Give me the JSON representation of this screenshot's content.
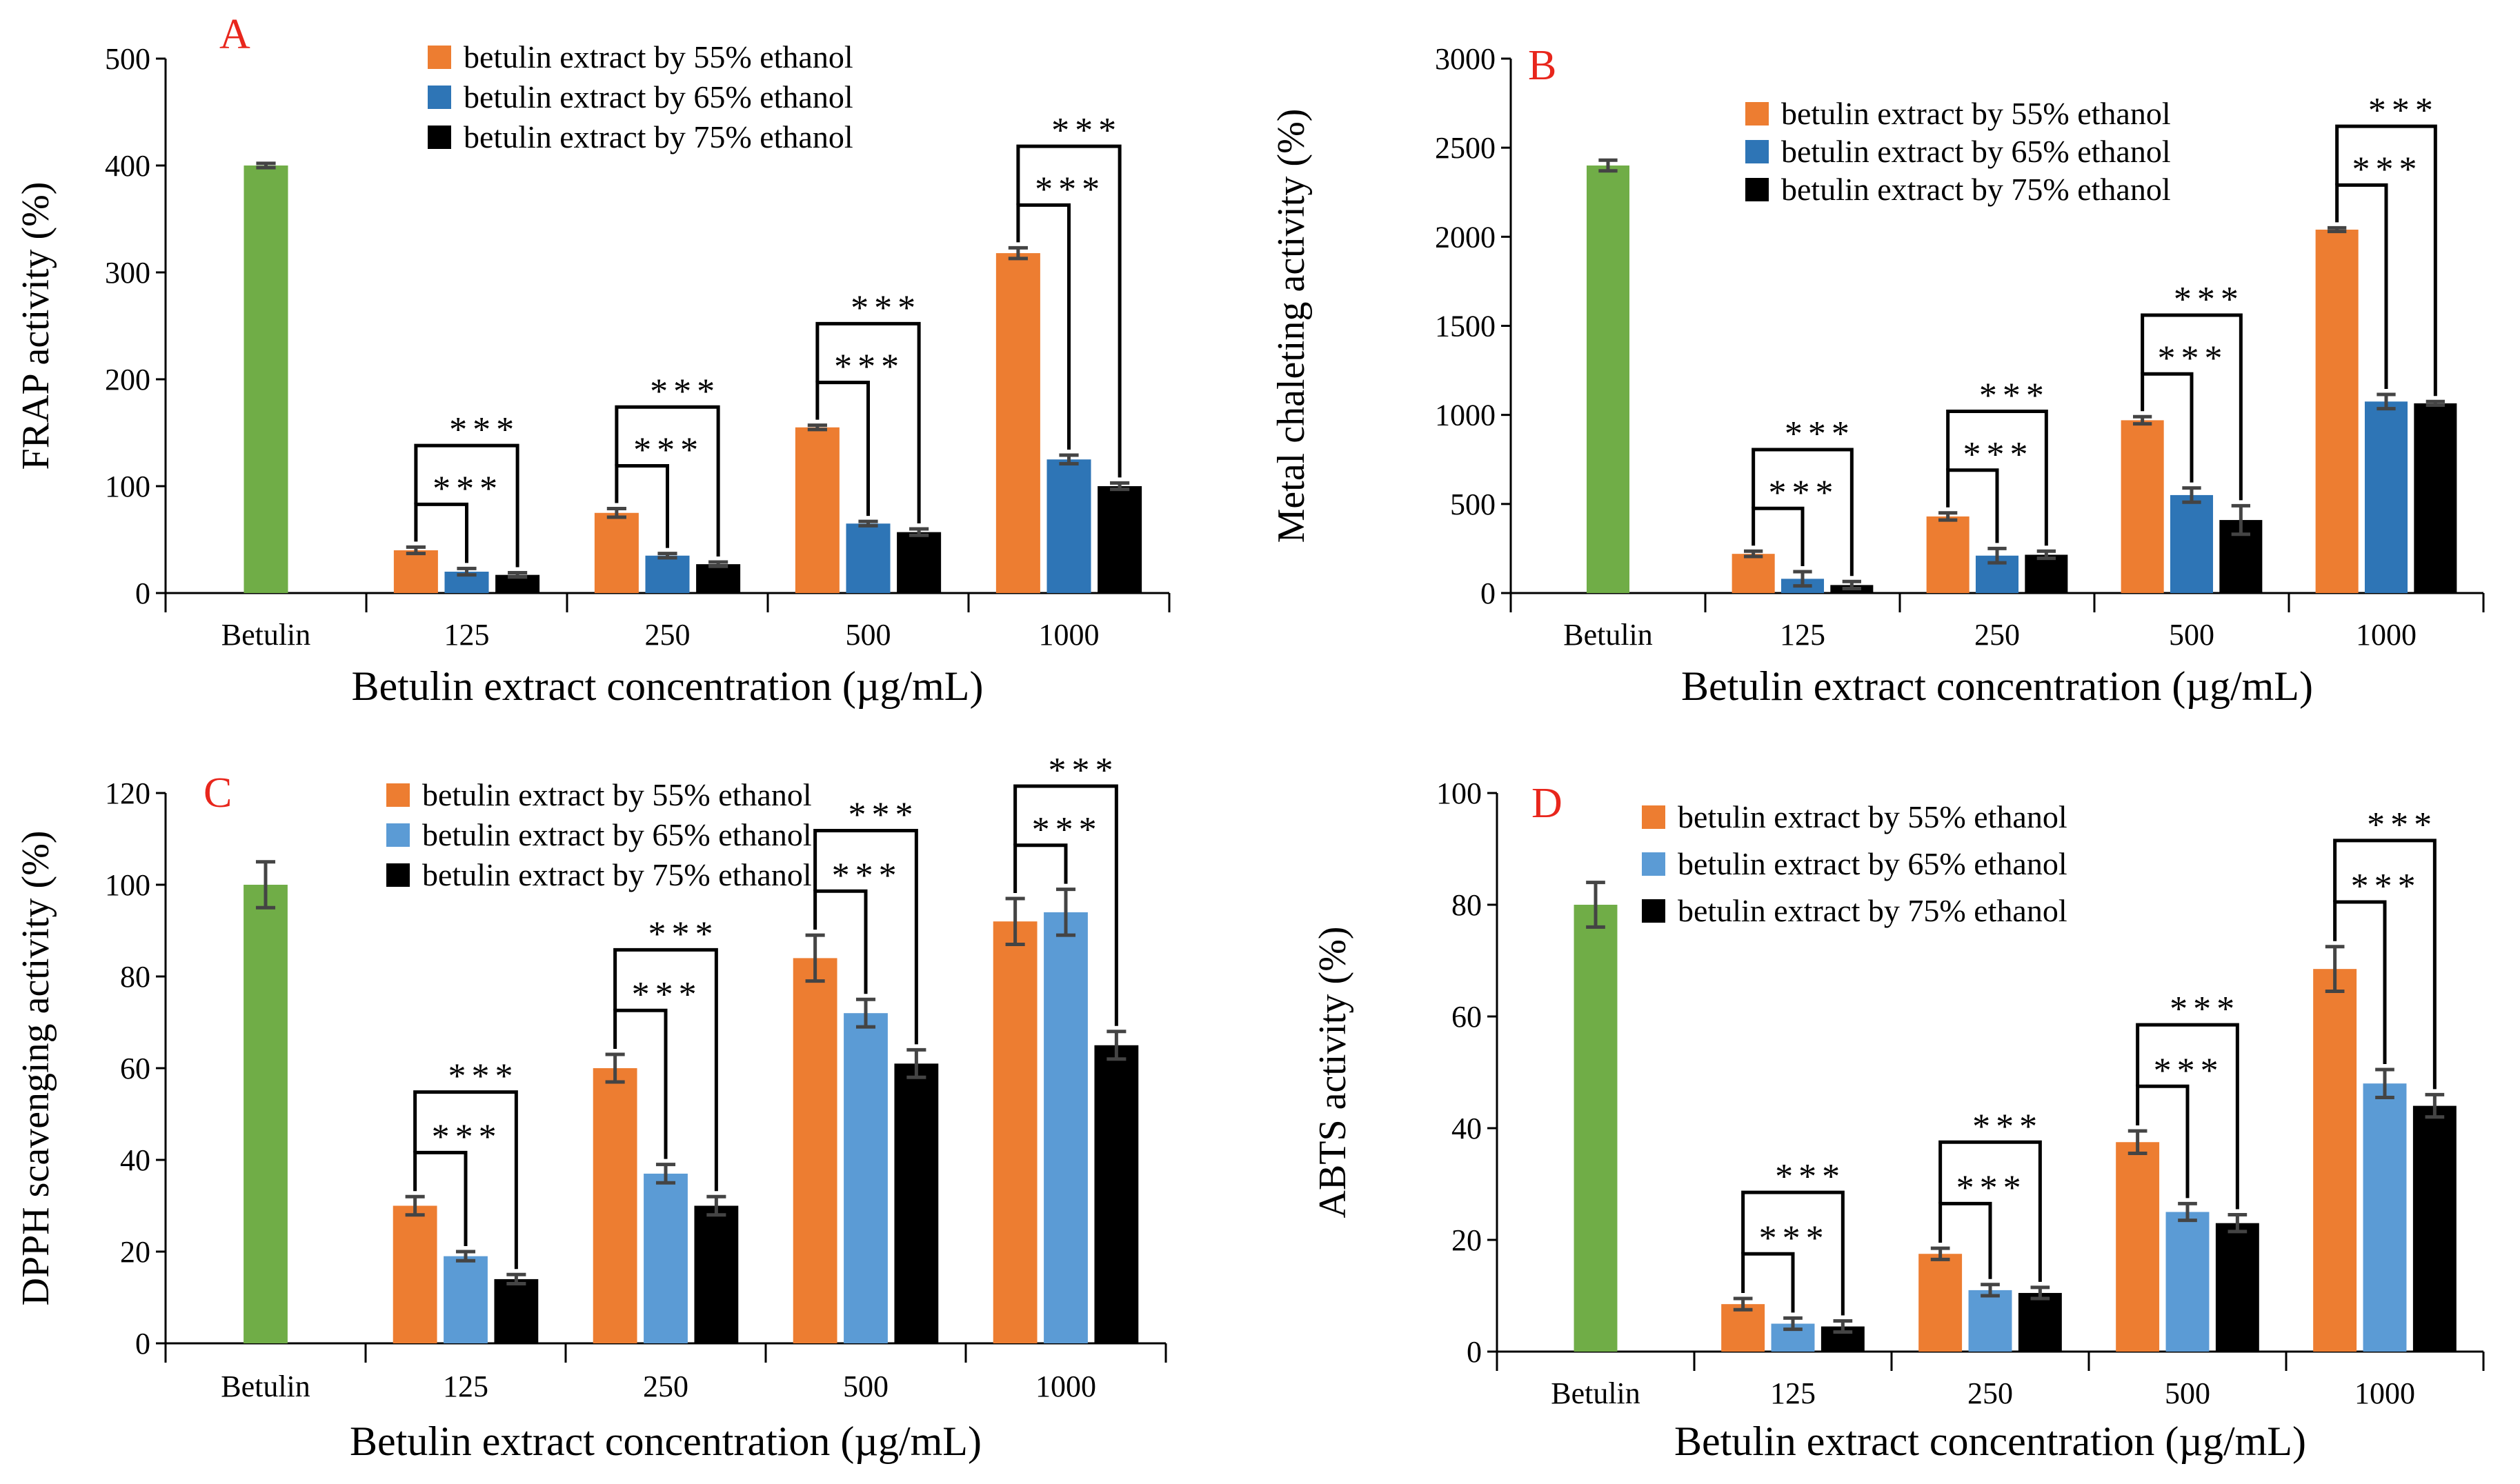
{
  "chart_data": [
    {
      "panel": "A",
      "type": "bar",
      "ylabel": "FRAP activity (%)",
      "xlabel": "Betulin extract concentration (µg/mL)",
      "ylim": [
        0,
        500
      ],
      "yticks": [
        0,
        100,
        200,
        300,
        400,
        500
      ],
      "control": {
        "label": "Betulin",
        "value": 400,
        "err": 2
      },
      "categories": [
        "125",
        "250",
        "500",
        "1000"
      ],
      "series": [
        {
          "name": "betulin extract by 55% ethanol",
          "values": [
            40,
            75,
            155,
            318
          ],
          "errors": [
            3,
            4,
            2,
            5
          ]
        },
        {
          "name": "betulin extract by 65% ethanol",
          "values": [
            20,
            35,
            65,
            125
          ],
          "errors": [
            3,
            2,
            2,
            4
          ]
        },
        {
          "name": "betulin extract by 75% ethanol",
          "values": [
            17,
            27,
            57,
            100
          ],
          "errors": [
            2,
            2,
            3,
            3
          ]
        }
      ],
      "significance": "***",
      "legend_position": "top-center"
    },
    {
      "panel": "B",
      "type": "bar",
      "ylabel": "Metal chaleting activity (%)",
      "xlabel": "Betulin extract concentration (µg/mL)",
      "ylim": [
        0,
        3000
      ],
      "yticks": [
        0,
        500,
        1000,
        1500,
        2000,
        2500,
        3000
      ],
      "control": {
        "label": "Betulin",
        "value": 2400,
        "err": 30
      },
      "categories": [
        "125",
        "250",
        "500",
        "1000"
      ],
      "series": [
        {
          "name": "betulin extract by 55% ethanol",
          "values": [
            220,
            430,
            970,
            2040
          ],
          "errors": [
            15,
            20,
            20,
            10
          ]
        },
        {
          "name": "betulin extract by 65% ethanol",
          "values": [
            80,
            210,
            550,
            1075
          ],
          "errors": [
            40,
            40,
            40,
            40
          ]
        },
        {
          "name": "betulin extract by 75% ethanol",
          "values": [
            45,
            215,
            410,
            1065
          ],
          "errors": [
            20,
            20,
            80,
            10
          ]
        }
      ],
      "significance": "***",
      "legend_position": "top-center"
    },
    {
      "panel": "C",
      "type": "bar",
      "ylabel": "DPPH scavenging activity (%)",
      "xlabel": "Betulin extract concentration (µg/mL)",
      "ylim": [
        0,
        120
      ],
      "yticks": [
        0,
        20,
        40,
        60,
        80,
        100,
        120
      ],
      "control": {
        "label": "Betulin",
        "value": 100,
        "err": 5
      },
      "categories": [
        "125",
        "250",
        "500",
        "1000"
      ],
      "series": [
        {
          "name": "betulin extract by 55% ethanol",
          "values": [
            30,
            60,
            84,
            92
          ],
          "errors": [
            2,
            3,
            5,
            5
          ]
        },
        {
          "name": "betulin extract by 65% ethanol",
          "values": [
            19,
            37,
            72,
            94
          ],
          "errors": [
            1,
            2,
            3,
            5
          ]
        },
        {
          "name": "betulin extract by 75% ethanol",
          "values": [
            14,
            30,
            61,
            65
          ],
          "errors": [
            1,
            2,
            3,
            3
          ]
        }
      ],
      "significance": "***",
      "legend_position": "top-center"
    },
    {
      "panel": "D",
      "type": "bar",
      "ylabel": "ABTS activity (%)",
      "xlabel": "Betulin extract concentration (µg/mL)",
      "ylim": [
        0,
        100
      ],
      "yticks": [
        0,
        20,
        40,
        60,
        80,
        100
      ],
      "control": {
        "label": "Betulin",
        "value": 80,
        "err": 4
      },
      "categories": [
        "125",
        "250",
        "500",
        "1000"
      ],
      "series": [
        {
          "name": "betulin extract by 55% ethanol",
          "values": [
            8.5,
            17.5,
            37.5,
            68.5
          ],
          "errors": [
            1,
            1,
            2,
            4
          ]
        },
        {
          "name": "betulin extract by 65% ethanol",
          "values": [
            5,
            11,
            25,
            48
          ],
          "errors": [
            1,
            1,
            1.5,
            2.5
          ]
        },
        {
          "name": "betulin extract by 75% ethanol",
          "values": [
            4.5,
            10.5,
            23,
            44
          ],
          "errors": [
            1,
            1,
            1.5,
            2
          ]
        }
      ],
      "significance": "***",
      "legend_position": "top-center"
    }
  ],
  "colors": {
    "control": "#70ad47",
    "series_AB": [
      "#ed7d31",
      "#2e75b6",
      "#000000"
    ],
    "series_CD": [
      "#ed7d31",
      "#5b9bd5",
      "#000000"
    ],
    "panel_letter": "#e8261c"
  }
}
